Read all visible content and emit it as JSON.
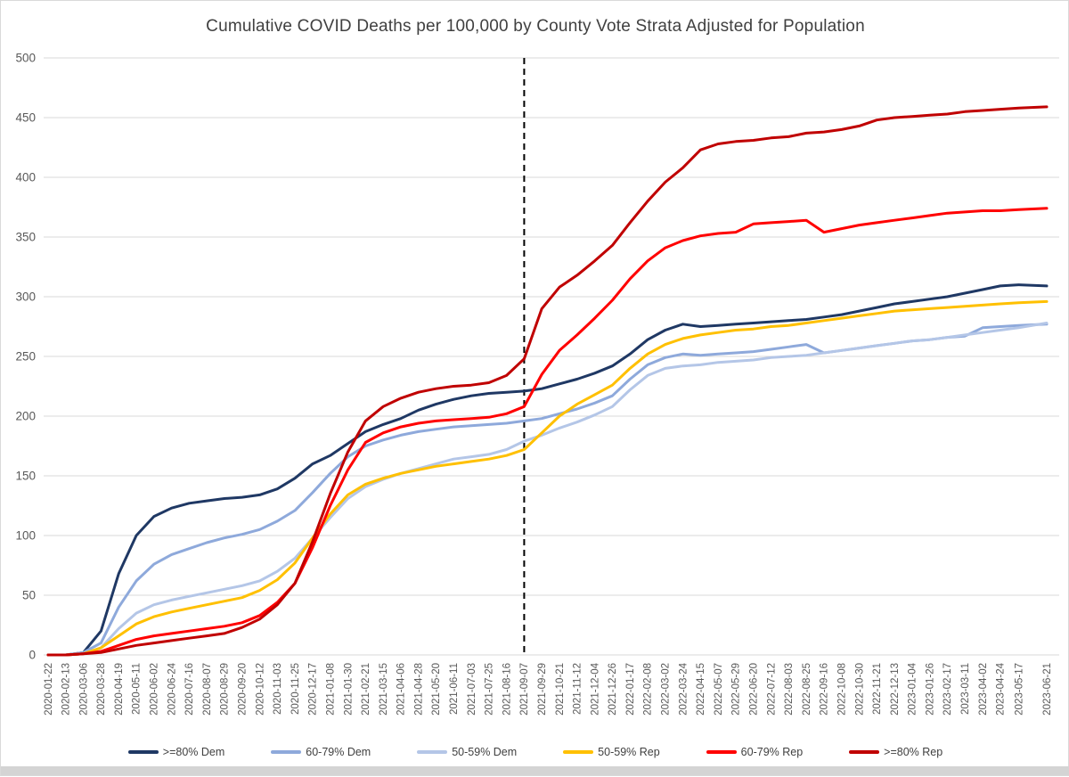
{
  "page": {
    "title": "Cumulative COVID Deaths per 100,000 by County Vote Strata Adjusted for Population"
  },
  "colors": {
    "grid": "#d9d9d9",
    "axis_text": "#595959",
    "title_text": "#404040",
    "background": "#ffffff",
    "annotation_line": "#000000",
    "bottom_strip": "#d4d4d4"
  },
  "chart_data": {
    "type": "line",
    "title": "Cumulative COVID Deaths per 100,000 by County Vote Strata Adjusted for Population",
    "xlabel": "",
    "ylabel": "",
    "ylim": [
      0,
      500
    ],
    "y_ticks": [
      0,
      50,
      100,
      150,
      200,
      250,
      300,
      350,
      400,
      450,
      500
    ],
    "grid": "horizontal",
    "legend_position": "bottom",
    "annotation": {
      "type": "vline",
      "x": "2021-09-07",
      "style": "dashed",
      "color": "#000000"
    },
    "x_labels": [
      "2020-01-22",
      "2020-02-13",
      "2020-03-06",
      "2020-03-28",
      "2020-04-19",
      "2020-05-11",
      "2020-06-02",
      "2020-06-24",
      "2020-07-16",
      "2020-08-07",
      "2020-08-29",
      "2020-09-20",
      "2020-10-12",
      "2020-11-03",
      "2020-11-25",
      "2020-12-17",
      "2021-01-08",
      "2021-01-30",
      "2021-02-21",
      "2021-03-15",
      "2021-04-06",
      "2021-04-28",
      "2021-05-20",
      "2021-06-11",
      "2021-07-03",
      "2021-07-25",
      "2021-08-16",
      "2021-09-07",
      "2021-09-29",
      "2021-10-21",
      "2021-11-12",
      "2021-12-04",
      "2021-12-26",
      "2022-01-17",
      "2022-02-08",
      "2022-03-02",
      "2022-03-24",
      "2022-04-15",
      "2022-05-07",
      "2022-05-29",
      "2022-06-20",
      "2022-07-12",
      "2022-08-03",
      "2022-08-25",
      "2022-09-16",
      "2022-10-08",
      "2022-10-30",
      "2022-11-21",
      "2022-12-13",
      "2023-01-04",
      "2023-01-26",
      "2023-02-17",
      "2023-03-11",
      "2023-04-02",
      "2023-04-24",
      "2023-05-17",
      "2023-06-21"
    ],
    "series": [
      {
        "name": ">=80% Dem",
        "color": "#1F3864",
        "values": [
          0,
          0,
          2,
          20,
          68,
          100,
          116,
          123,
          127,
          129,
          131,
          132,
          134,
          139,
          148,
          160,
          167,
          177,
          187,
          193,
          198,
          205,
          210,
          214,
          217,
          219,
          220,
          221,
          223,
          227,
          231,
          236,
          242,
          252,
          264,
          272,
          277,
          275,
          276,
          277,
          278,
          279,
          280,
          281,
          283,
          285,
          288,
          291,
          294,
          296,
          298,
          300,
          303,
          306,
          309,
          310,
          309
        ]
      },
      {
        "name": "60-79% Dem",
        "color": "#8EA9DB",
        "values": [
          0,
          0,
          2,
          10,
          40,
          62,
          76,
          84,
          89,
          94,
          98,
          101,
          105,
          112,
          121,
          136,
          152,
          166,
          175,
          180,
          184,
          187,
          189,
          191,
          192,
          193,
          194,
          196,
          198,
          202,
          206,
          211,
          217,
          231,
          243,
          249,
          252,
          251,
          252,
          253,
          254,
          256,
          258,
          260,
          253,
          255,
          257,
          259,
          261,
          263,
          264,
          266,
          267,
          274,
          275,
          276,
          277
        ]
      },
      {
        "name": "50-59% Dem",
        "color": "#B4C6E7",
        "values": [
          0,
          0,
          1,
          6,
          22,
          35,
          42,
          46,
          49,
          52,
          55,
          58,
          62,
          70,
          81,
          98,
          115,
          131,
          141,
          147,
          152,
          156,
          160,
          164,
          166,
          168,
          172,
          179,
          184,
          190,
          195,
          201,
          208,
          222,
          234,
          240,
          242,
          243,
          245,
          246,
          247,
          249,
          250,
          251,
          253,
          255,
          257,
          259,
          261,
          263,
          264,
          266,
          268,
          270,
          272,
          274,
          278
        ]
      },
      {
        "name": "50-59% Rep",
        "color": "#FFC000",
        "values": [
          0,
          0,
          1,
          6,
          16,
          26,
          32,
          36,
          39,
          42,
          45,
          48,
          54,
          63,
          77,
          98,
          118,
          134,
          143,
          148,
          152,
          155,
          158,
          160,
          162,
          164,
          167,
          172,
          186,
          200,
          210,
          218,
          226,
          240,
          252,
          260,
          265,
          268,
          270,
          272,
          273,
          275,
          276,
          278,
          280,
          282,
          284,
          286,
          288,
          289,
          290,
          291,
          292,
          293,
          294,
          295,
          296
        ]
      },
      {
        "name": "60-79% Rep",
        "color": "#FF0000",
        "values": [
          0,
          0,
          1,
          3,
          8,
          13,
          16,
          18,
          20,
          22,
          24,
          27,
          33,
          44,
          60,
          90,
          125,
          155,
          178,
          186,
          191,
          194,
          196,
          197,
          198,
          199,
          202,
          208,
          235,
          255,
          268,
          282,
          297,
          315,
          330,
          341,
          347,
          351,
          353,
          354,
          361,
          362,
          363,
          364,
          354,
          357,
          360,
          362,
          364,
          366,
          368,
          370,
          371,
          372,
          372,
          373,
          374
        ]
      },
      {
        "name": ">=80% Rep",
        "color": "#C00000",
        "values": [
          0,
          0,
          1,
          2,
          5,
          8,
          10,
          12,
          14,
          16,
          18,
          23,
          30,
          42,
          60,
          95,
          135,
          170,
          196,
          208,
          215,
          220,
          223,
          225,
          226,
          228,
          234,
          248,
          290,
          308,
          318,
          330,
          343,
          362,
          380,
          396,
          408,
          423,
          428,
          430,
          431,
          433,
          434,
          437,
          438,
          440,
          443,
          448,
          450,
          451,
          452,
          453,
          455,
          456,
          457,
          458,
          459
        ]
      }
    ]
  }
}
